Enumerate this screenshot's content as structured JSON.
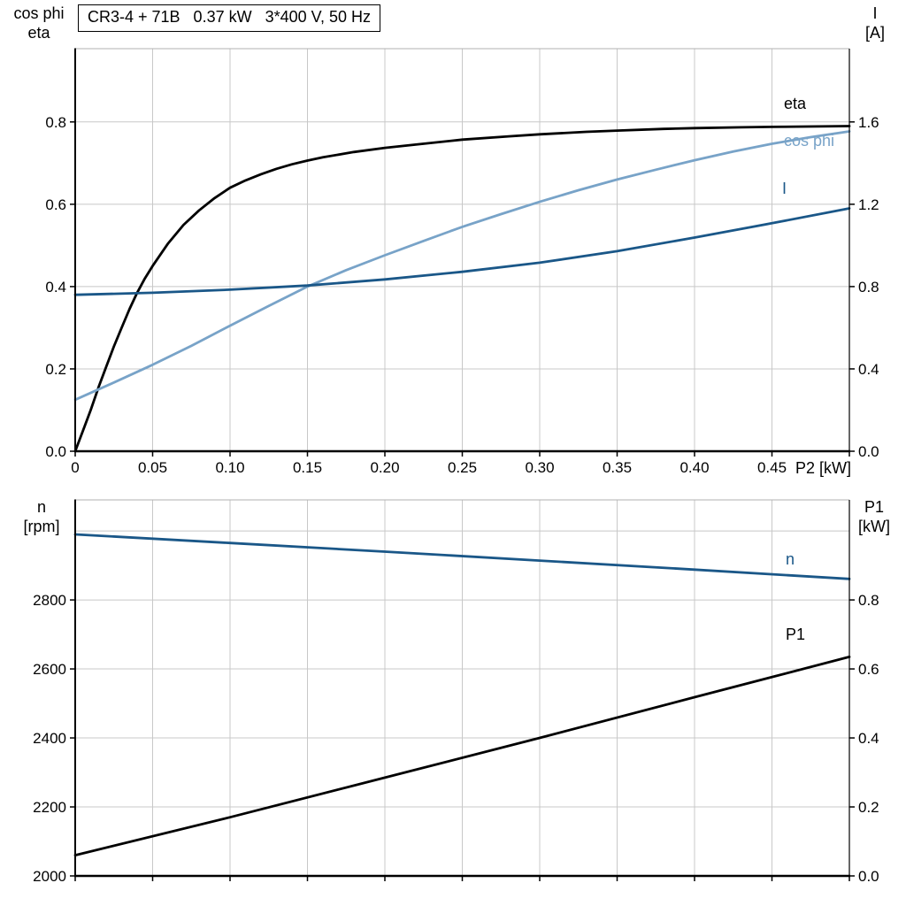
{
  "title_box": {
    "text": "CR3-4 + 71B   0.37 kW   3*400 V, 50 Hz"
  },
  "axis_labels": {
    "top_left_line1": "cos phi",
    "top_left_line2": "eta",
    "top_right_line1": "I",
    "top_right_line2": "[A]",
    "x_label_top": "P2 [kW]",
    "bottom_left_line1": "n",
    "bottom_left_line2": "[rpm]",
    "bottom_right_line1": "P1",
    "bottom_right_line2": "[kW]"
  },
  "curve_labels": {
    "eta": "eta",
    "cos_phi": "cos phi",
    "current": "I",
    "speed": "n",
    "power": "P1"
  },
  "chart_data": [
    {
      "type": "line",
      "title": "CR3-4 + 71B 0.37 kW 3*400 V, 50 Hz",
      "xlabel": "P2 [kW]",
      "grid_color": "#c8c8c8",
      "xlim": [
        0,
        0.5
      ],
      "xtick_values": [
        0,
        0.05,
        0.1,
        0.15,
        0.2,
        0.25,
        0.3,
        0.35,
        0.4,
        0.45,
        0.5
      ],
      "xtick_labels": [
        "0",
        "0.05",
        "0.10",
        "0.15",
        "0.20",
        "0.25",
        "0.30",
        "0.35",
        "0.40",
        "0.45",
        ""
      ],
      "y_left": {
        "label": "cos phi / eta",
        "lim": [
          0,
          0.978
        ],
        "tick_values": [
          0,
          0.2,
          0.4,
          0.6,
          0.8
        ],
        "tick_labels": [
          "0.0",
          "0.2",
          "0.4",
          "0.6",
          "0.8"
        ]
      },
      "y_right": {
        "label": "I [A]",
        "lim": [
          0,
          1.956
        ],
        "tick_values": [
          0,
          0.4,
          0.8,
          1.2,
          1.6
        ],
        "tick_labels": [
          "0.0",
          "0.4",
          "0.8",
          "1.2",
          "1.6"
        ]
      },
      "series": [
        {
          "name": "eta",
          "axis": "left",
          "color": "#000000",
          "width": 2.8,
          "x": [
            0,
            0.005,
            0.01,
            0.015,
            0.02,
            0.025,
            0.03,
            0.035,
            0.04,
            0.045,
            0.05,
            0.06,
            0.07,
            0.08,
            0.09,
            0.1,
            0.11,
            0.12,
            0.13,
            0.14,
            0.15,
            0.16,
            0.18,
            0.2,
            0.22,
            0.25,
            0.28,
            0.3,
            0.33,
            0.35,
            0.38,
            0.4,
            0.43,
            0.45,
            0.48,
            0.5
          ],
          "y": [
            0,
            0.05,
            0.1,
            0.155,
            0.205,
            0.255,
            0.3,
            0.345,
            0.385,
            0.42,
            0.45,
            0.505,
            0.55,
            0.585,
            0.615,
            0.64,
            0.658,
            0.673,
            0.686,
            0.697,
            0.706,
            0.714,
            0.727,
            0.737,
            0.745,
            0.757,
            0.765,
            0.77,
            0.776,
            0.779,
            0.783,
            0.785,
            0.787,
            0.788,
            0.789,
            0.79
          ]
        },
        {
          "name": "cos-phi",
          "axis": "left",
          "color": "#78a3c8",
          "width": 2.8,
          "x": [
            0,
            0.025,
            0.05,
            0.075,
            0.1,
            0.125,
            0.15,
            0.175,
            0.2,
            0.225,
            0.25,
            0.275,
            0.3,
            0.325,
            0.35,
            0.375,
            0.4,
            0.425,
            0.45,
            0.475,
            0.5
          ],
          "y": [
            0.125,
            0.167,
            0.21,
            0.256,
            0.305,
            0.353,
            0.4,
            0.44,
            0.476,
            0.511,
            0.545,
            0.576,
            0.606,
            0.634,
            0.66,
            0.684,
            0.707,
            0.728,
            0.747,
            0.763,
            0.777
          ]
        },
        {
          "name": "current",
          "axis": "right",
          "color": "#1a5788",
          "width": 2.8,
          "x": [
            0,
            0.05,
            0.1,
            0.15,
            0.2,
            0.25,
            0.3,
            0.35,
            0.4,
            0.45,
            0.5
          ],
          "y": [
            0.76,
            0.77,
            0.785,
            0.805,
            0.835,
            0.872,
            0.916,
            0.972,
            1.038,
            1.108,
            1.18
          ]
        }
      ]
    },
    {
      "type": "line",
      "title": "",
      "xlabel": "",
      "grid_color": "#c8c8c8",
      "xlim": [
        0,
        0.5
      ],
      "xtick_values": [
        0,
        0.05,
        0.1,
        0.15,
        0.2,
        0.25,
        0.3,
        0.35,
        0.4,
        0.45,
        0.5
      ],
      "xtick_labels": [
        "",
        "",
        "",
        "",
        "",
        "",
        "",
        "",
        "",
        "",
        ""
      ],
      "grid_y_extra": [
        3000
      ],
      "y_left": {
        "label": "n [rpm]",
        "lim": [
          2000,
          3090
        ],
        "tick_values": [
          2000,
          2200,
          2400,
          2600,
          2800
        ],
        "tick_labels": [
          "2000",
          "2200",
          "2400",
          "2600",
          "2800"
        ]
      },
      "y_right": {
        "label": "P1 [kW]",
        "lim": [
          0,
          1.09
        ],
        "tick_values": [
          0,
          0.2,
          0.4,
          0.6,
          0.8
        ],
        "tick_labels": [
          "0.0",
          "0.2",
          "0.4",
          "0.6",
          "0.8"
        ]
      },
      "series": [
        {
          "name": "speed",
          "axis": "left",
          "color": "#1a5788",
          "width": 2.8,
          "x": [
            0,
            0.1,
            0.2,
            0.3,
            0.4,
            0.5
          ],
          "y": [
            2990,
            2965,
            2940,
            2914,
            2888,
            2861
          ]
        },
        {
          "name": "power-p1",
          "axis": "right",
          "color": "#000000",
          "width": 2.8,
          "x": [
            0,
            0.1,
            0.2,
            0.3,
            0.4,
            0.5
          ],
          "y": [
            0.06,
            0.17,
            0.285,
            0.4,
            0.518,
            0.635
          ]
        }
      ]
    }
  ]
}
